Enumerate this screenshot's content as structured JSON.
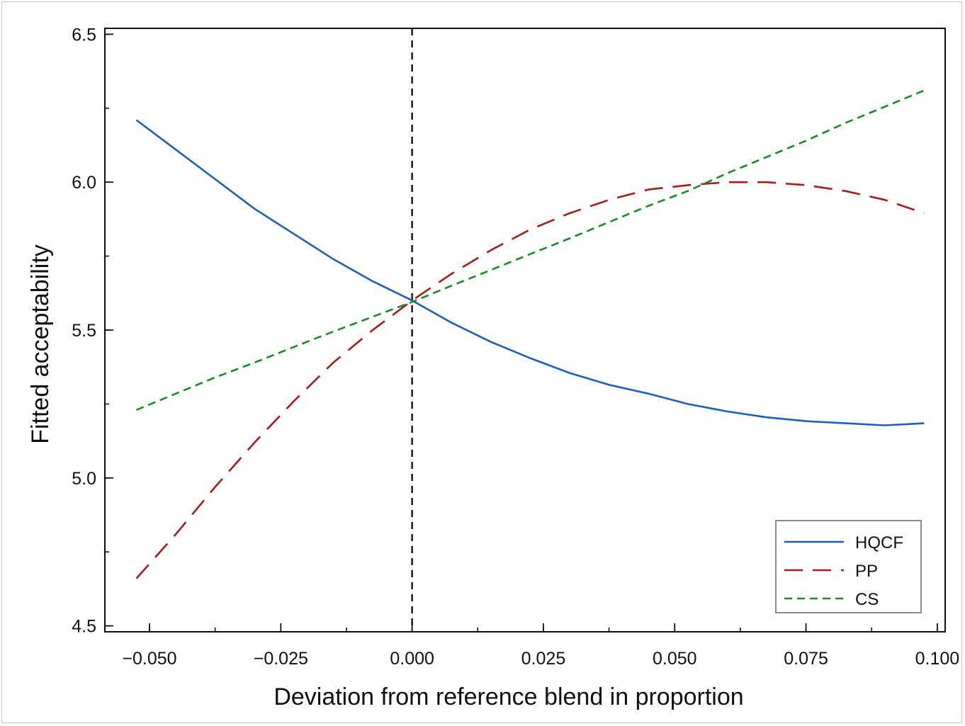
{
  "chart_data": {
    "type": "line",
    "title": "",
    "xlabel": "Deviation from reference blend in proportion",
    "ylabel": "Fitted acceptability",
    "xlim": [
      -0.0585,
      0.1015
    ],
    "ylim": [
      4.48,
      6.52
    ],
    "xticks": [
      -0.05,
      -0.025,
      0.0,
      0.025,
      0.05,
      0.075,
      0.1
    ],
    "xtick_labels": [
      "−0.050",
      "−0.025",
      "0.000",
      "0.025",
      "0.050",
      "0.075",
      "0.100"
    ],
    "yticks": [
      4.5,
      5.0,
      5.5,
      6.0,
      6.5
    ],
    "ytick_labels": [
      "4.5",
      "5.0",
      "5.5",
      "6.0",
      "6.5"
    ],
    "x_minor_step": 0.0125,
    "y_minor_step": 0.25,
    "reference_line_x": 0.0,
    "grid": false,
    "legend_position": "bottom-right",
    "series": [
      {
        "name": "HQCF",
        "color": "#1f5fb4",
        "dash": "solid",
        "x": [
          -0.0525,
          -0.045,
          -0.0375,
          -0.03,
          -0.0225,
          -0.015,
          -0.0075,
          0.0,
          0.0075,
          0.015,
          0.0225,
          0.03,
          0.0375,
          0.045,
          0.0525,
          0.06,
          0.0675,
          0.075,
          0.0825,
          0.09,
          0.0975
        ],
        "y": [
          6.21,
          6.11,
          6.01,
          5.91,
          5.825,
          5.74,
          5.665,
          5.6,
          5.525,
          5.46,
          5.405,
          5.355,
          5.315,
          5.285,
          5.25,
          5.225,
          5.205,
          5.192,
          5.185,
          5.178,
          5.185
        ]
      },
      {
        "name": "PP",
        "color": "#a61c1c",
        "dash": "long",
        "x": [
          -0.0525,
          -0.045,
          -0.0375,
          -0.03,
          -0.0225,
          -0.015,
          -0.0075,
          0.0,
          0.0075,
          0.015,
          0.0225,
          0.03,
          0.0375,
          0.045,
          0.0525,
          0.06,
          0.0675,
          0.075,
          0.0825,
          0.09,
          0.0975
        ],
        "y": [
          4.66,
          4.81,
          4.97,
          5.12,
          5.26,
          5.39,
          5.5,
          5.6,
          5.69,
          5.77,
          5.84,
          5.895,
          5.94,
          5.975,
          5.99,
          6.0,
          6.0,
          5.99,
          5.97,
          5.94,
          5.895
        ]
      },
      {
        "name": "CS",
        "color": "#1a8a2a",
        "dash": "short",
        "x": [
          -0.0525,
          -0.045,
          -0.0375,
          -0.03,
          -0.0225,
          -0.015,
          -0.0075,
          0.0,
          0.0075,
          0.015,
          0.0225,
          0.03,
          0.0375,
          0.045,
          0.0525,
          0.06,
          0.0675,
          0.075,
          0.0825,
          0.09,
          0.0975
        ],
        "y": [
          5.23,
          5.285,
          5.34,
          5.39,
          5.443,
          5.495,
          5.545,
          5.595,
          5.65,
          5.703,
          5.757,
          5.81,
          5.865,
          5.92,
          5.97,
          6.03,
          6.085,
          6.14,
          6.2,
          6.255,
          6.31
        ]
      }
    ]
  }
}
